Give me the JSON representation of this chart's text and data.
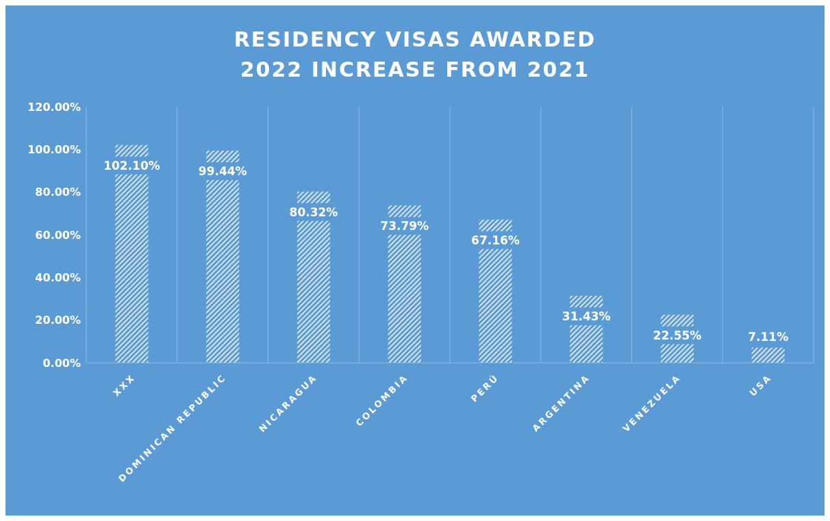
{
  "chart_data": {
    "type": "bar",
    "title": "RESIDENCY VISAS AWARDED\n2022 INCREASE FROM 2021",
    "categories": [
      "XXX",
      "DOMINICAN REPUBLIC",
      "NICARAGUA",
      "COLOMBIA",
      "PERÚ",
      "ARGENTINA",
      "VENEZUELA",
      "USA"
    ],
    "values": [
      102.1,
      99.44,
      80.32,
      73.79,
      67.16,
      31.43,
      22.55,
      7.11
    ],
    "value_labels": [
      "102.10%",
      "99.44%",
      "80.32%",
      "73.79%",
      "67.16%",
      "31.43%",
      "22.55%",
      "7.11%"
    ],
    "color": "#ffffff",
    "ylim": [
      0,
      120
    ],
    "yticks": [
      {
        "value": 0,
        "label": "0.00%"
      },
      {
        "value": 20,
        "label": "20.00%"
      },
      {
        "value": 40,
        "label": "40.00%"
      },
      {
        "value": 60,
        "label": "60.00%"
      },
      {
        "value": 80,
        "label": "80.00%"
      },
      {
        "value": 100,
        "label": "100.00%"
      },
      {
        "value": 120,
        "label": "120.00%"
      }
    ],
    "grid": "x"
  }
}
